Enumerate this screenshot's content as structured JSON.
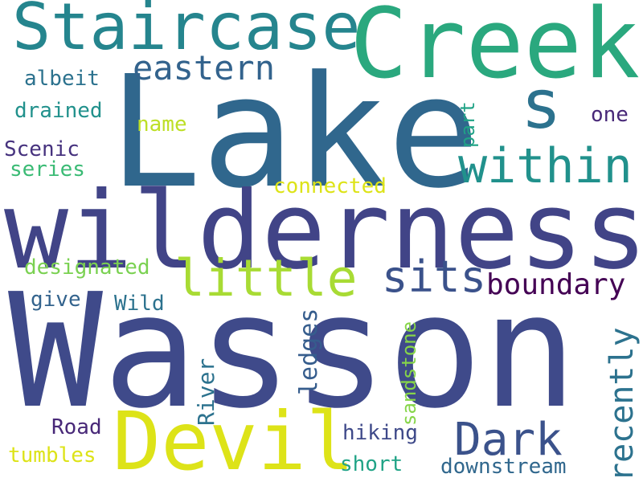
{
  "words": {
    "wasson": {
      "text": "Wasson",
      "color": "#3f4a8a"
    },
    "lake": {
      "text": "Lake",
      "color": "#30678d"
    },
    "wilderness": {
      "text": "wilderness",
      "color": "#414487"
    },
    "creek": {
      "text": "Creek",
      "color": "#2aa87e"
    },
    "staircase": {
      "text": "Staircase",
      "color": "#25858e"
    },
    "devil": {
      "text": "Devil",
      "color": "#dde318"
    },
    "s": {
      "text": "s",
      "color": "#2c728e"
    },
    "within": {
      "text": "within",
      "color": "#21918c"
    },
    "little": {
      "text": "little",
      "color": "#a8db34"
    },
    "sits": {
      "text": "sits",
      "color": "#3b528b"
    },
    "dark": {
      "text": "Dark",
      "color": "#3b528b"
    },
    "eastern": {
      "text": "eastern",
      "color": "#33638d"
    },
    "boundary": {
      "text": "boundary",
      "color": "#440154"
    },
    "recently": {
      "text": "recently",
      "color": "#2c728e"
    },
    "albeit": {
      "text": "albeit",
      "color": "#2c728e"
    },
    "drained": {
      "text": "drained",
      "color": "#21918c"
    },
    "name": {
      "text": "name",
      "color": "#bddf26"
    },
    "one": {
      "text": "one",
      "color": "#482878"
    },
    "scenic": {
      "text": "Scenic",
      "color": "#46327e"
    },
    "series": {
      "text": "series",
      "color": "#3bbb75"
    },
    "part": {
      "text": "part",
      "color": "#20a386"
    },
    "connected": {
      "text": "connected",
      "color": "#dde318"
    },
    "designated": {
      "text": "designated",
      "color": "#7ad151"
    },
    "give": {
      "text": "give",
      "color": "#33638d"
    },
    "wild": {
      "text": "Wild",
      "color": "#2c728e"
    },
    "ledges": {
      "text": "ledges",
      "color": "#365d8d"
    },
    "sandstone": {
      "text": "sandstone",
      "color": "#86d549"
    },
    "river": {
      "text": "River",
      "color": "#2c728e"
    },
    "road": {
      "text": "Road",
      "color": "#482878"
    },
    "hiking": {
      "text": "hiking",
      "color": "#3e4989"
    },
    "tumbles": {
      "text": "tumbles",
      "color": "#dde318"
    },
    "short": {
      "text": "short",
      "color": "#20a386"
    },
    "downstream": {
      "text": "downstream",
      "color": "#30678d"
    }
  }
}
